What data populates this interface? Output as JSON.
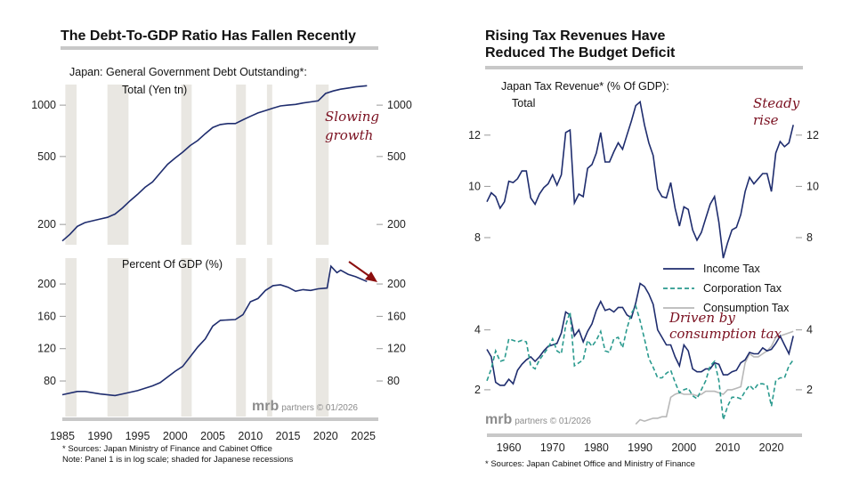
{
  "chart_data": [
    {
      "type": "line",
      "title": "The Debt-To-GDP Ratio Has Fallen Recently",
      "subtitle": "Japan: General Government Debt Outstanding*:",
      "logo": "mrb partners © 01/2026",
      "xlim": [
        1985,
        2027
      ],
      "xticks": [
        1985,
        1990,
        1995,
        2000,
        2005,
        2010,
        2015,
        2020,
        2025
      ],
      "recessions": [
        [
          1985.4,
          1986.9
        ],
        [
          1991.0,
          1993.8
        ],
        [
          2000.8,
          2002.2
        ],
        [
          2008.1,
          2009.4
        ],
        [
          2012.2,
          2012.9
        ],
        [
          2018.7,
          2020.4
        ]
      ],
      "recession_color": "#e9e7e2",
      "footnotes": [
        "* Sources: Japan Ministry of Finance and Cabinet Office",
        "Note: Panel 1 is in log scale; shaded for Japanese recessions"
      ],
      "panels": [
        {
          "label": "Total (Yen tn)",
          "scale": "log",
          "ylim": [
            152,
            1320
          ],
          "yticks": [
            200,
            500,
            1000
          ],
          "annotation": [
            "Slowing",
            "growth"
          ],
          "series": [
            {
              "color": "#1f2d6e",
              "x": [
                1985,
                1986,
                1987,
                1988,
                1989,
                1990,
                1991,
                1992,
                1993,
                1994,
                1995,
                1996,
                1997,
                1998,
                1999,
                2000,
                2001,
                2002,
                2003,
                2004,
                2005,
                2006,
                2007,
                2008,
                2009,
                2010,
                2011,
                2012,
                2013,
                2014,
                2015,
                2016,
                2017,
                2018,
                2019,
                2020,
                2021,
                2022,
                2023,
                2024,
                2025.5
              ],
              "values": [
                160,
                175,
                195,
                205,
                210,
                215,
                220,
                230,
                250,
                275,
                300,
                330,
                355,
                400,
                450,
                490,
                530,
                580,
                620,
                680,
                740,
                770,
                780,
                780,
                820,
                860,
                900,
                930,
                960,
                990,
                1000,
                1010,
                1030,
                1045,
                1060,
                1170,
                1210,
                1240,
                1260,
                1280,
                1300
              ]
            }
          ]
        },
        {
          "label": "Percent Of GDP (%)",
          "scale": "linear",
          "ylim": [
            36,
            232
          ],
          "yticks": [
            80,
            120,
            160,
            200
          ],
          "annotation_arrow": "down",
          "series": [
            {
              "color": "#1f2d6e",
              "x": [
                1985,
                1987,
                1988,
                1990,
                1992,
                1993,
                1995,
                1997,
                1998,
                2000,
                2001,
                2002,
                2003,
                2004,
                2005,
                2006,
                2008,
                2009,
                2010,
                2011,
                2012,
                2013,
                2014,
                2015,
                2016,
                2017,
                2018,
                2019,
                2020.2,
                2020.7,
                2021.5,
                2022,
                2023,
                2024,
                2025.5
              ],
              "values": [
                63,
                67,
                67,
                64,
                62,
                64,
                68,
                74,
                78,
                92,
                98,
                110,
                122,
                132,
                148,
                155,
                156,
                162,
                178,
                182,
                192,
                198,
                199,
                196,
                191,
                193,
                192,
                194,
                195,
                222,
                214,
                217,
                212,
                209,
                203
              ]
            }
          ]
        }
      ]
    },
    {
      "type": "line",
      "title": [
        "Rising Tax Revenues Have",
        "Reduced The Budget Deficit"
      ],
      "subtitle": "Japan Tax Revenue* (% Of GDP):",
      "logo": "mrb partners © 01/2026",
      "xlim": [
        1955,
        2027
      ],
      "xticks": [
        1960,
        1970,
        1980,
        1990,
        2000,
        2010,
        2020
      ],
      "footnotes": [
        "* Sources: Japan Cabinet Office and Ministry of Finance"
      ],
      "panels": [
        {
          "label": "Total",
          "scale": "linear",
          "ylim": [
            7.2,
            13.8
          ],
          "yticks": [
            8,
            10,
            12
          ],
          "annotation": [
            "Steady",
            "rise"
          ],
          "series": [
            {
              "color": "#1f2d6e",
              "x0": 1955,
              "values": [
                9.4,
                9.75,
                9.6,
                9.15,
                9.4,
                10.2,
                10.15,
                10.3,
                10.6,
                10.6,
                9.55,
                9.3,
                9.7,
                9.95,
                10.1,
                10.45,
                10.05,
                10.45,
                12.1,
                12.2,
                9.35,
                9.7,
                9.6,
                10.7,
                10.85,
                11.3,
                12.1,
                10.95,
                10.95,
                11.35,
                11.7,
                11.45,
                12.0,
                12.55,
                13.15,
                13.3,
                12.4,
                11.7,
                11.2,
                9.9,
                9.6,
                9.55,
                10.15,
                9.15,
                8.45,
                9.2,
                9.1,
                8.3,
                7.9,
                8.2,
                8.75,
                9.3,
                9.6,
                8.6,
                7.2,
                7.8,
                8.3,
                8.4,
                8.9,
                9.8,
                10.35,
                10.1,
                10.3,
                10.5,
                10.5,
                9.8,
                11.3,
                11.75,
                11.55,
                11.7,
                12.4
              ]
            }
          ]
        },
        {
          "label": "",
          "scale": "linear",
          "ylim": [
            0.6,
            6.1
          ],
          "yticks": [
            2,
            4
          ],
          "annotation": [
            "Driven by",
            "consumption tax"
          ],
          "legend": "top-right",
          "series": [
            {
              "name": "Income Tax",
              "color": "#1f2d6e",
              "dash": "solid",
              "x0": 1955,
              "values": [
                3.35,
                3.1,
                2.25,
                2.15,
                2.15,
                2.35,
                2.2,
                2.65,
                2.85,
                3.0,
                3.1,
                2.95,
                3.1,
                3.3,
                3.45,
                3.5,
                3.55,
                3.9,
                4.6,
                4.5,
                3.8,
                4.0,
                3.6,
                3.95,
                4.2,
                4.65,
                4.95,
                4.65,
                4.7,
                4.6,
                4.75,
                4.75,
                4.5,
                4.4,
                4.9,
                5.55,
                5.45,
                5.2,
                4.85,
                4.0,
                3.75,
                3.5,
                3.5,
                3.1,
                2.8,
                3.5,
                3.3,
                2.7,
                2.6,
                2.6,
                2.7,
                2.7,
                2.9,
                2.85,
                2.5,
                2.5,
                2.6,
                2.65,
                2.9,
                3.0,
                3.25,
                3.2,
                3.2,
                3.4,
                3.3,
                3.35,
                3.55,
                3.8,
                3.5,
                3.2,
                3.8
              ]
            },
            {
              "name": "Corporation Tax",
              "color": "#2a9a8e",
              "dash": "dashed",
              "x0": 1955,
              "values": [
                2.3,
                2.7,
                3.3,
                2.95,
                3.0,
                3.7,
                3.65,
                3.6,
                3.65,
                3.6,
                2.8,
                2.7,
                3.0,
                3.2,
                3.4,
                3.7,
                3.3,
                3.2,
                4.15,
                4.6,
                2.8,
                2.9,
                3.0,
                3.65,
                3.45,
                3.65,
                3.95,
                3.3,
                3.25,
                3.7,
                3.75,
                3.4,
                4.05,
                4.55,
                4.8,
                4.3,
                3.7,
                3.05,
                2.75,
                2.4,
                2.4,
                2.55,
                2.65,
                2.25,
                1.9,
                2.0,
                2.05,
                1.8,
                1.7,
                2.0,
                2.3,
                2.8,
                2.95,
                2.3,
                1.0,
                1.45,
                1.75,
                1.75,
                1.7,
                1.95,
                2.15,
                2.0,
                2.2,
                2.2,
                2.15,
                1.45,
                2.3,
                2.4,
                2.4,
                2.8,
                3.0
              ]
            },
            {
              "name": "Consumption Tax",
              "color": "#b8b8b8",
              "dash": "solid",
              "x0": 1989,
              "values": [
                0.85,
                1.0,
                0.95,
                1.0,
                1.05,
                1.05,
                1.1,
                1.1,
                1.75,
                1.85,
                1.9,
                1.85,
                1.85,
                1.85,
                1.8,
                1.85,
                1.95,
                1.95,
                1.95,
                1.9,
                1.85,
                2.0,
                2.0,
                2.05,
                2.1,
                2.9,
                3.2,
                3.1,
                3.1,
                3.2,
                3.3,
                3.45,
                3.75,
                3.8,
                3.85,
                3.9,
                3.95
              ]
            }
          ]
        }
      ]
    }
  ]
}
